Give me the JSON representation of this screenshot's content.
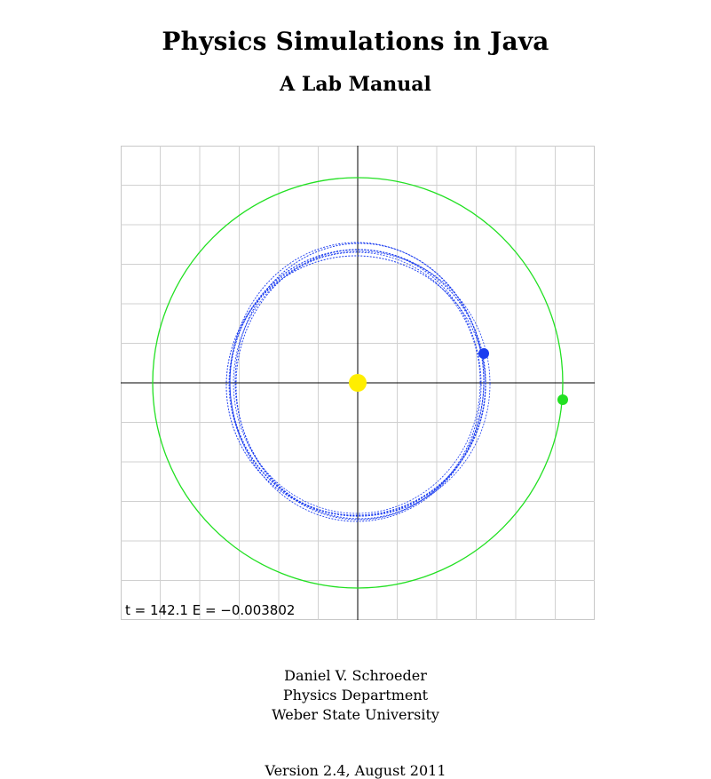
{
  "document": {
    "title": "Physics Simulations in Java",
    "subtitle": "A Lab Manual",
    "author": "Daniel V. Schroeder",
    "department": "Physics Department",
    "university": "Weber State University",
    "version": "Version 2.4, August 2011"
  },
  "simulation": {
    "readout": "t = 142.1  E = −0.003802",
    "colors": {
      "grid": "#d0d0d0",
      "axes": "#000000",
      "inner_orbit": "#1a3cf0",
      "outer_orbit": "#22e022",
      "sun": "#ffee00",
      "inner_planet": "#1a3cf0",
      "outer_planet": "#22e022"
    }
  }
}
